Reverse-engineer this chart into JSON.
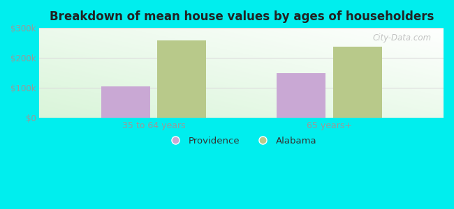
{
  "title": "Breakdown of mean house values by ages of householders",
  "categories": [
    "35 to 64 years",
    "65 years+"
  ],
  "series": {
    "Providence": [
      105000,
      150000
    ],
    "Alabama": [
      258000,
      238000
    ]
  },
  "colors": {
    "Providence": "#c9a8d4",
    "Alabama": "#b8c98a"
  },
  "ylim": [
    0,
    300000
  ],
  "yticks": [
    0,
    100000,
    200000,
    300000
  ],
  "ytick_labels": [
    "$0",
    "$100k",
    "$200k",
    "$300k"
  ],
  "background_color": "#00eeee",
  "bar_width": 0.28,
  "watermark": "City-Data.com",
  "grid_color": "#dddddd",
  "tick_color": "#999999",
  "title_color": "#222222"
}
